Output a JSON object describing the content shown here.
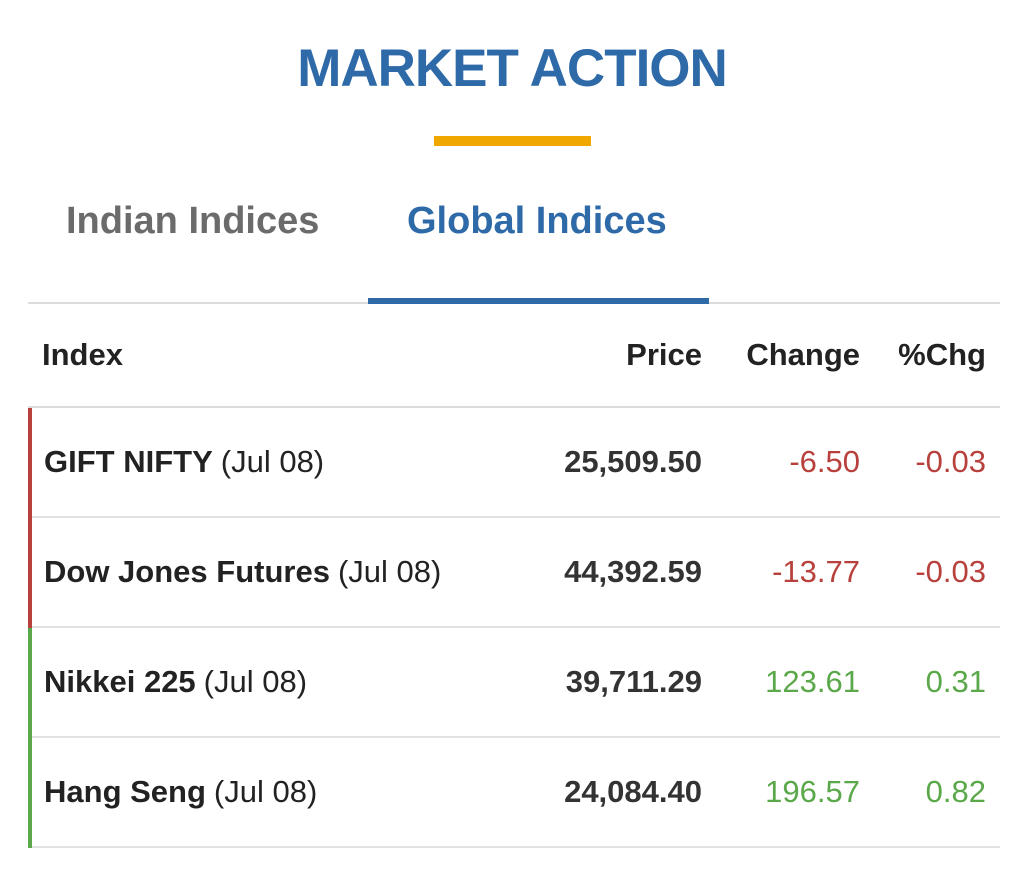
{
  "header": {
    "title": "MARKET ACTION"
  },
  "tabs": [
    {
      "label": "Indian Indices",
      "active": false
    },
    {
      "label": "Global Indices",
      "active": true
    }
  ],
  "table": {
    "columns": [
      "Index",
      "Price",
      "Change",
      "%Chg"
    ],
    "rows": [
      {
        "name": "GIFT NIFTY",
        "date": "(Jul 08)",
        "price": "25,509.50",
        "change": "-6.50",
        "pct": "-0.03",
        "direction": "down"
      },
      {
        "name": "Dow Jones Futures",
        "date": "(Jul 08)",
        "price": "44,392.59",
        "change": "-13.77",
        "pct": "-0.03",
        "direction": "down"
      },
      {
        "name": "Nikkei 225",
        "date": "(Jul 08)",
        "price": "39,711.29",
        "change": "123.61",
        "pct": "0.31",
        "direction": "up"
      },
      {
        "name": "Hang Seng",
        "date": "(Jul 08)",
        "price": "24,084.40",
        "change": "196.57",
        "pct": "0.82",
        "direction": "up"
      }
    ]
  },
  "colors": {
    "accent": "#2f6aa8",
    "underline": "#f0a800",
    "negative": "#b8413d",
    "positive": "#5aa84a"
  }
}
